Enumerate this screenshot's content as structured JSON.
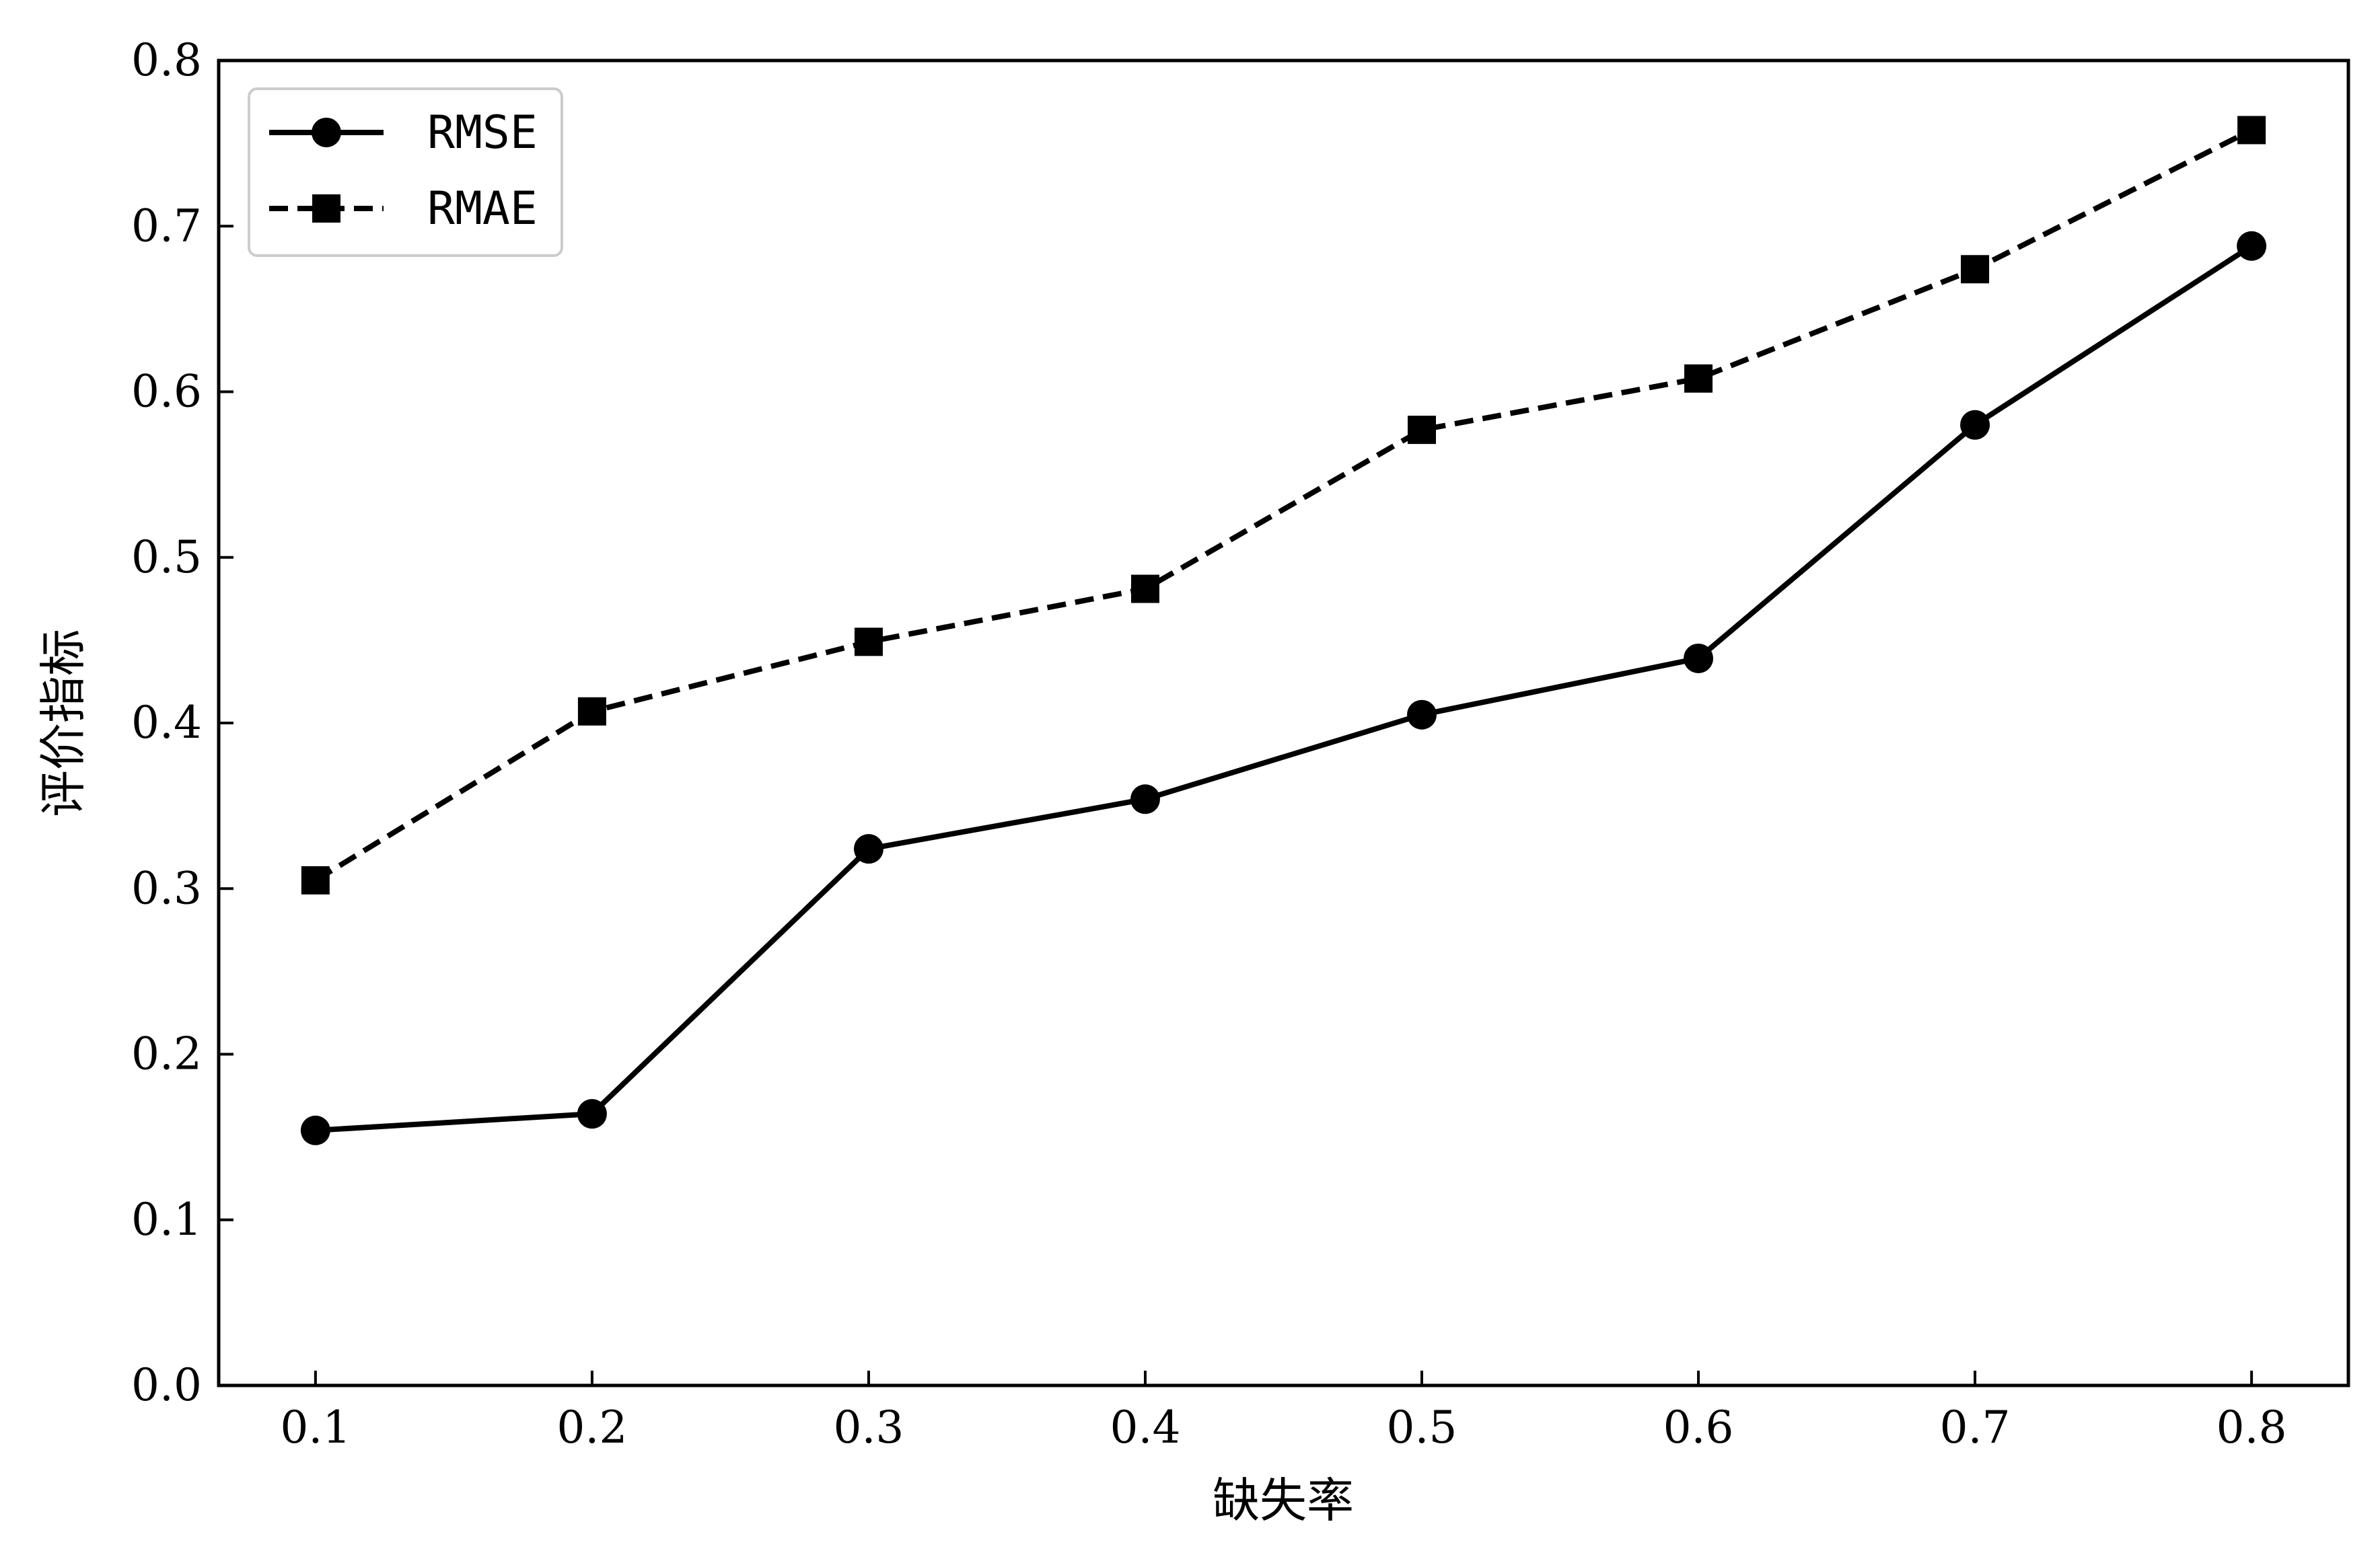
{
  "chart_data": {
    "type": "line",
    "title": "",
    "xlabel": "缺失率",
    "ylabel": "评价指标",
    "x": [
      0.1,
      0.2,
      0.3,
      0.4,
      0.5,
      0.6,
      0.7,
      0.8
    ],
    "xticks": [
      "0.1",
      "0.2",
      "0.3",
      "0.4",
      "0.5",
      "0.6",
      "0.7",
      "0.8"
    ],
    "yticks": [
      "0.0",
      "0.1",
      "0.2",
      "0.3",
      "0.4",
      "0.5",
      "0.6",
      "0.7",
      "0.8"
    ],
    "xlim": [
      0.065,
      0.835
    ],
    "ylim": [
      0.0,
      0.8
    ],
    "grid": false,
    "legend": "top-left",
    "series": [
      {
        "name": "RMSE",
        "values": [
          0.154,
          0.164,
          0.324,
          0.354,
          0.405,
          0.439,
          0.58,
          0.688
        ],
        "marker": "circle",
        "linestyle": "solid",
        "color": "#000000"
      },
      {
        "name": "RMAE",
        "values": [
          0.305,
          0.407,
          0.449,
          0.481,
          0.577,
          0.608,
          0.674,
          0.758
        ],
        "marker": "square",
        "linestyle": "dashed",
        "color": "#000000"
      }
    ]
  }
}
